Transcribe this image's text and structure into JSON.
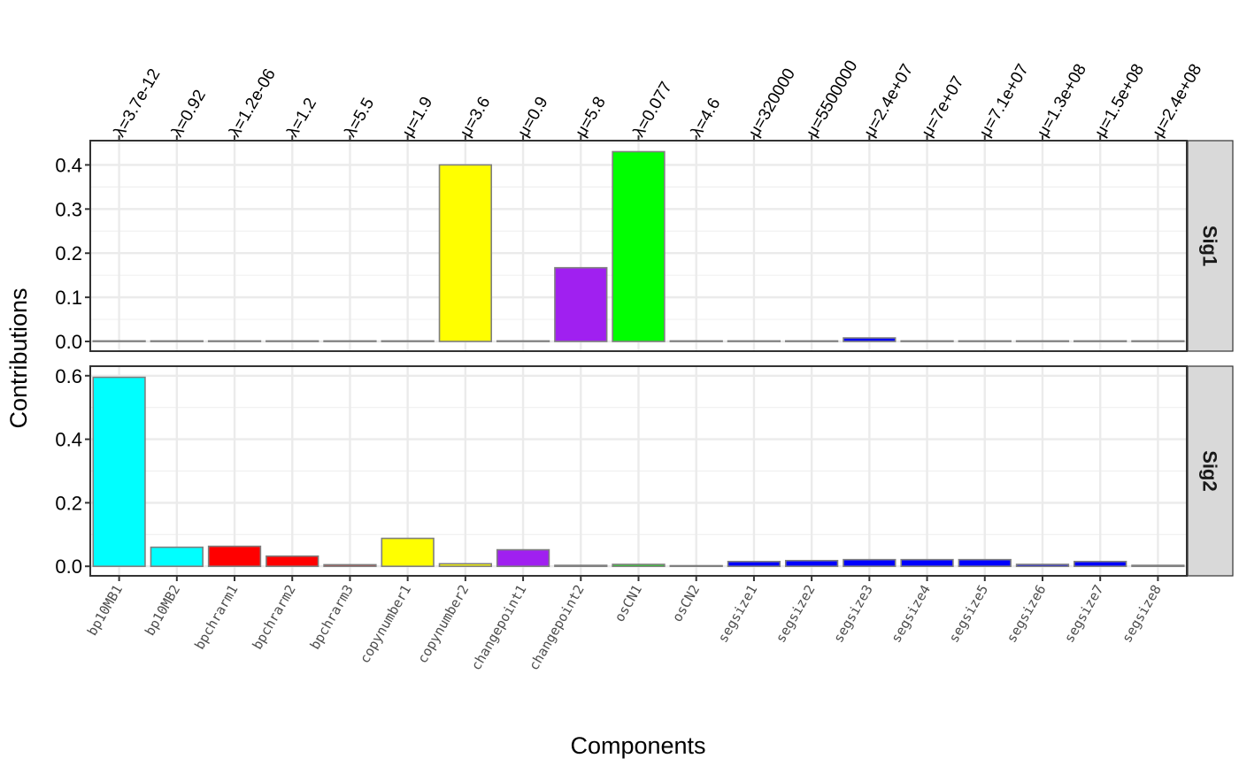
{
  "chart_data": {
    "type": "bar",
    "xlabel": "Components",
    "ylabel": "Contributions",
    "categories": [
      "bp10MB1",
      "bp10MB2",
      "bpchrarm1",
      "bpchrarm2",
      "bpchrarm3",
      "copynumber1",
      "copynumber2",
      "changepoint1",
      "changepoint2",
      "osCN1",
      "osCN2",
      "segsize1",
      "segsize2",
      "segsize3",
      "segsize4",
      "segsize5",
      "segsize6",
      "segsize7",
      "segsize8"
    ],
    "top_labels": [
      "λ=3.7e-12",
      "λ=0.92",
      "λ=1.2e-06",
      "λ=1.2",
      "λ=5.5",
      "μ=1.9",
      "μ=3.6",
      "μ=0.9",
      "μ=5.8",
      "λ=0.077",
      "λ=4.6",
      "μ=320000",
      "μ=5500000",
      "μ=2.4e+07",
      "μ=7e+07",
      "μ=7.1e+07",
      "μ=1.3e+08",
      "μ=1.5e+08",
      "μ=2.4e+08"
    ],
    "colors": [
      "#00FFFF",
      "#00FFFF",
      "#FF0000",
      "#FF0000",
      "#FF0000",
      "#FFFF00",
      "#FFFF00",
      "#A020F0",
      "#A020F0",
      "#00FF00",
      "#00FF00",
      "#0000FF",
      "#0000FF",
      "#0000FF",
      "#0000FF",
      "#0000FF",
      "#0000FF",
      "#0000FF",
      "#0000FF"
    ],
    "grid": true,
    "panels": [
      {
        "name": "Sig1",
        "ylim": [
          -0.022,
          0.455
        ],
        "yticks": [
          "0.0",
          "0.1",
          "0.2",
          "0.3",
          "0.4"
        ],
        "values": [
          0,
          0,
          0,
          0,
          0,
          0,
          0.4,
          0,
          0.167,
          0.43,
          0,
          0,
          0,
          0.008,
          0,
          0,
          0,
          0,
          0
        ]
      },
      {
        "name": "Sig2",
        "ylim": [
          -0.03,
          0.63
        ],
        "yticks": [
          "0.0",
          "0.2",
          "0.4",
          "0.6"
        ],
        "values": [
          0.595,
          0.06,
          0.063,
          0.032,
          0.005,
          0.088,
          0.008,
          0.052,
          0.003,
          0.006,
          0.002,
          0.015,
          0.018,
          0.021,
          0.021,
          0.021,
          0.006,
          0.015,
          0.003
        ]
      }
    ]
  }
}
